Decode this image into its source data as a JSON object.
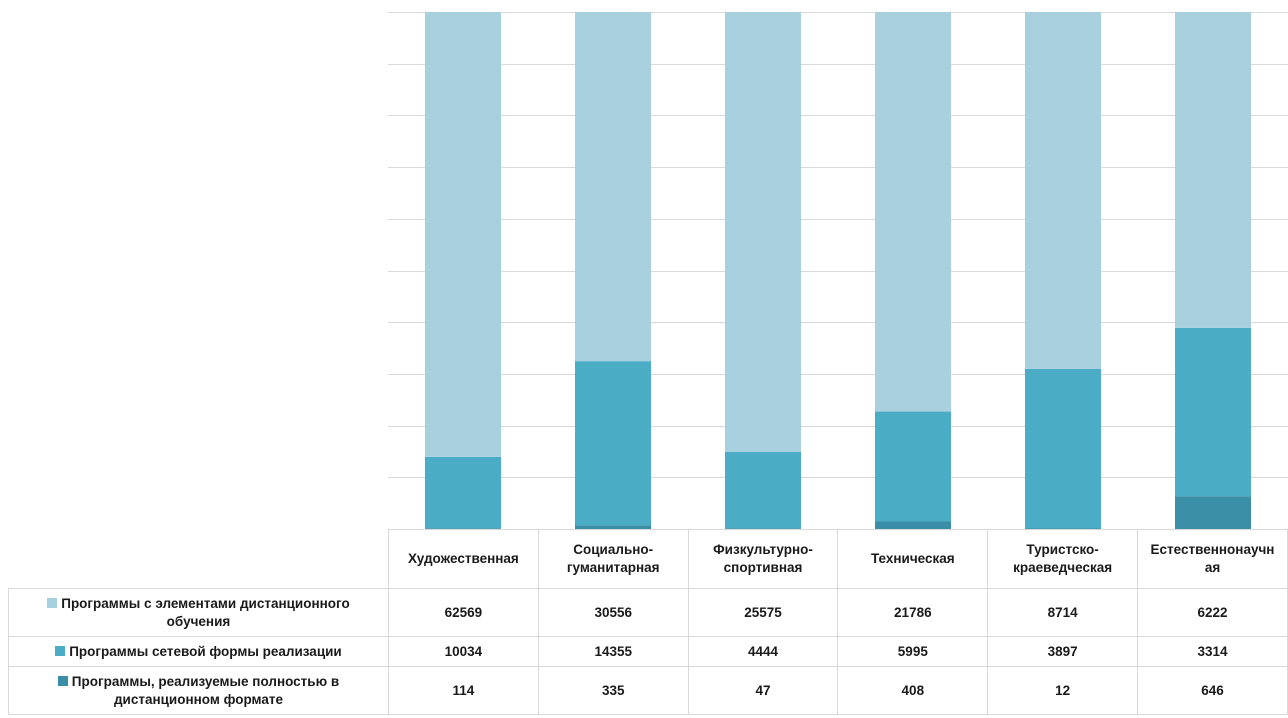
{
  "chart_data": {
    "type": "bar",
    "stacked": true,
    "normalized": true,
    "categories": [
      "Художественная",
      "Социально-гуманитарная",
      "Физкультурно-спортивная",
      "Техническая",
      "Туристско-краеведческая",
      "Естественнонаучная"
    ],
    "category_labels": [
      [
        "Художественная"
      ],
      [
        "Социально-",
        "гуманитарная"
      ],
      [
        "Физкультурно-",
        "спортивная"
      ],
      [
        "Техническая"
      ],
      [
        "Туристско-",
        "краеведческая"
      ],
      [
        "Естественнонаучн",
        "ая"
      ]
    ],
    "series": [
      {
        "name": "Программы, реализуемые полностью в дистанционном формате",
        "name_lines": [
          "Программы, реализуемые полностью в",
          "дистанционном формате"
        ],
        "color": "#3a8ea5",
        "values": [
          114,
          335,
          47,
          408,
          12,
          646
        ],
        "labels": [
          "114",
          "335",
          "47",
          "408",
          "12",
          "646"
        ]
      },
      {
        "name": "Программы сетевой формы реализации",
        "name_lines": [
          "Программы сетевой формы реализации"
        ],
        "color": "#4bacc6",
        "values": [
          10034,
          14355,
          4444,
          5995,
          3897,
          3314
        ],
        "labels": [
          "10034",
          "14355",
          "4444",
          "5995",
          "3897",
          "3314"
        ]
      },
      {
        "name": "Программы с элементами дистанционного обучения",
        "name_lines": [
          "Программы с элементами дистанционного",
          "обучения"
        ],
        "color": "#a8d0de",
        "values": [
          62569,
          30556,
          25575,
          21786,
          8714,
          6222
        ],
        "labels": [
          "62569",
          "30556",
          "25575",
          "21786",
          "8714",
          "6222"
        ]
      }
    ],
    "table_row_order": [
      2,
      1,
      0
    ],
    "ylim": [
      0,
      1
    ],
    "grid": true,
    "legend": "data-table"
  }
}
